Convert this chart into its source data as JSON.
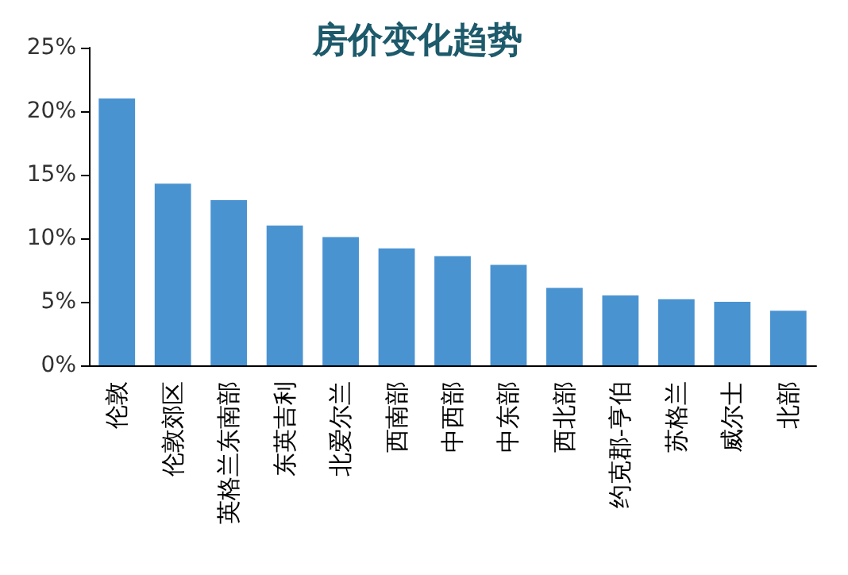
{
  "chart_data": {
    "type": "bar",
    "title": "房价变化趋势",
    "categories": [
      "伦敦",
      "伦敦郊区",
      "英格兰东南部",
      "东英吉利",
      "北爱尔兰",
      "西南部",
      "中西部",
      "中东部",
      "西北部",
      "约克郡-亨伯",
      "苏格兰",
      "威尔士",
      "北部"
    ],
    "values": [
      21.0,
      14.3,
      13.0,
      11.0,
      10.1,
      9.2,
      8.6,
      7.9,
      6.1,
      5.5,
      5.2,
      5.0,
      4.3
    ],
    "color": "#4a93d1",
    "ylim": [
      0,
      25
    ],
    "yticks": [
      {
        "value": 0,
        "label": "0%"
      },
      {
        "value": 5,
        "label": "5%"
      },
      {
        "value": 10,
        "label": "10%"
      },
      {
        "value": 15,
        "label": "15%"
      },
      {
        "value": 20,
        "label": "20%"
      },
      {
        "value": 25,
        "label": "25%"
      }
    ],
    "grid": false
  }
}
